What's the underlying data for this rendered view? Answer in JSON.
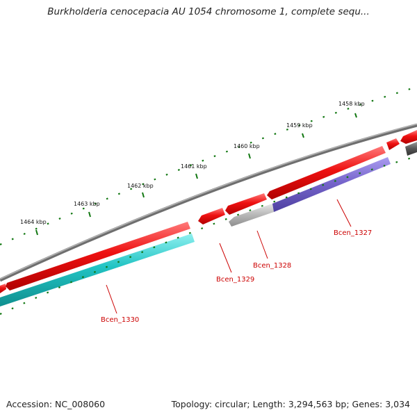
{
  "header": {
    "title": "Burkholderia cenocepacia AU 1054 chromosome 1, complete sequ..."
  },
  "footer": {
    "accession": "Accession: NC_008060",
    "topology": "Topology: circular; Length: 3,294,563 bp; Genes: 3,034"
  },
  "ruler": {
    "ticks": [
      "1458 kbp",
      "1459 kbp",
      "1460 kbp",
      "1461 kbp",
      "1462 kbp",
      "1463 kbp",
      "1464 kbp"
    ]
  },
  "genes": [
    {
      "label": "Bcen_1327",
      "color": "#7766cc"
    },
    {
      "label": "Bcen_1328",
      "color": "#bbbbbb"
    },
    {
      "label": "Bcen_1329",
      "color": "#ee1111"
    },
    {
      "label": "Bcen_1330",
      "color": "#22bbbb"
    }
  ],
  "colors": {
    "backbone": "#888888",
    "forward_cds": "#ee1111",
    "tick": "#117711",
    "label": "#cc0000"
  }
}
